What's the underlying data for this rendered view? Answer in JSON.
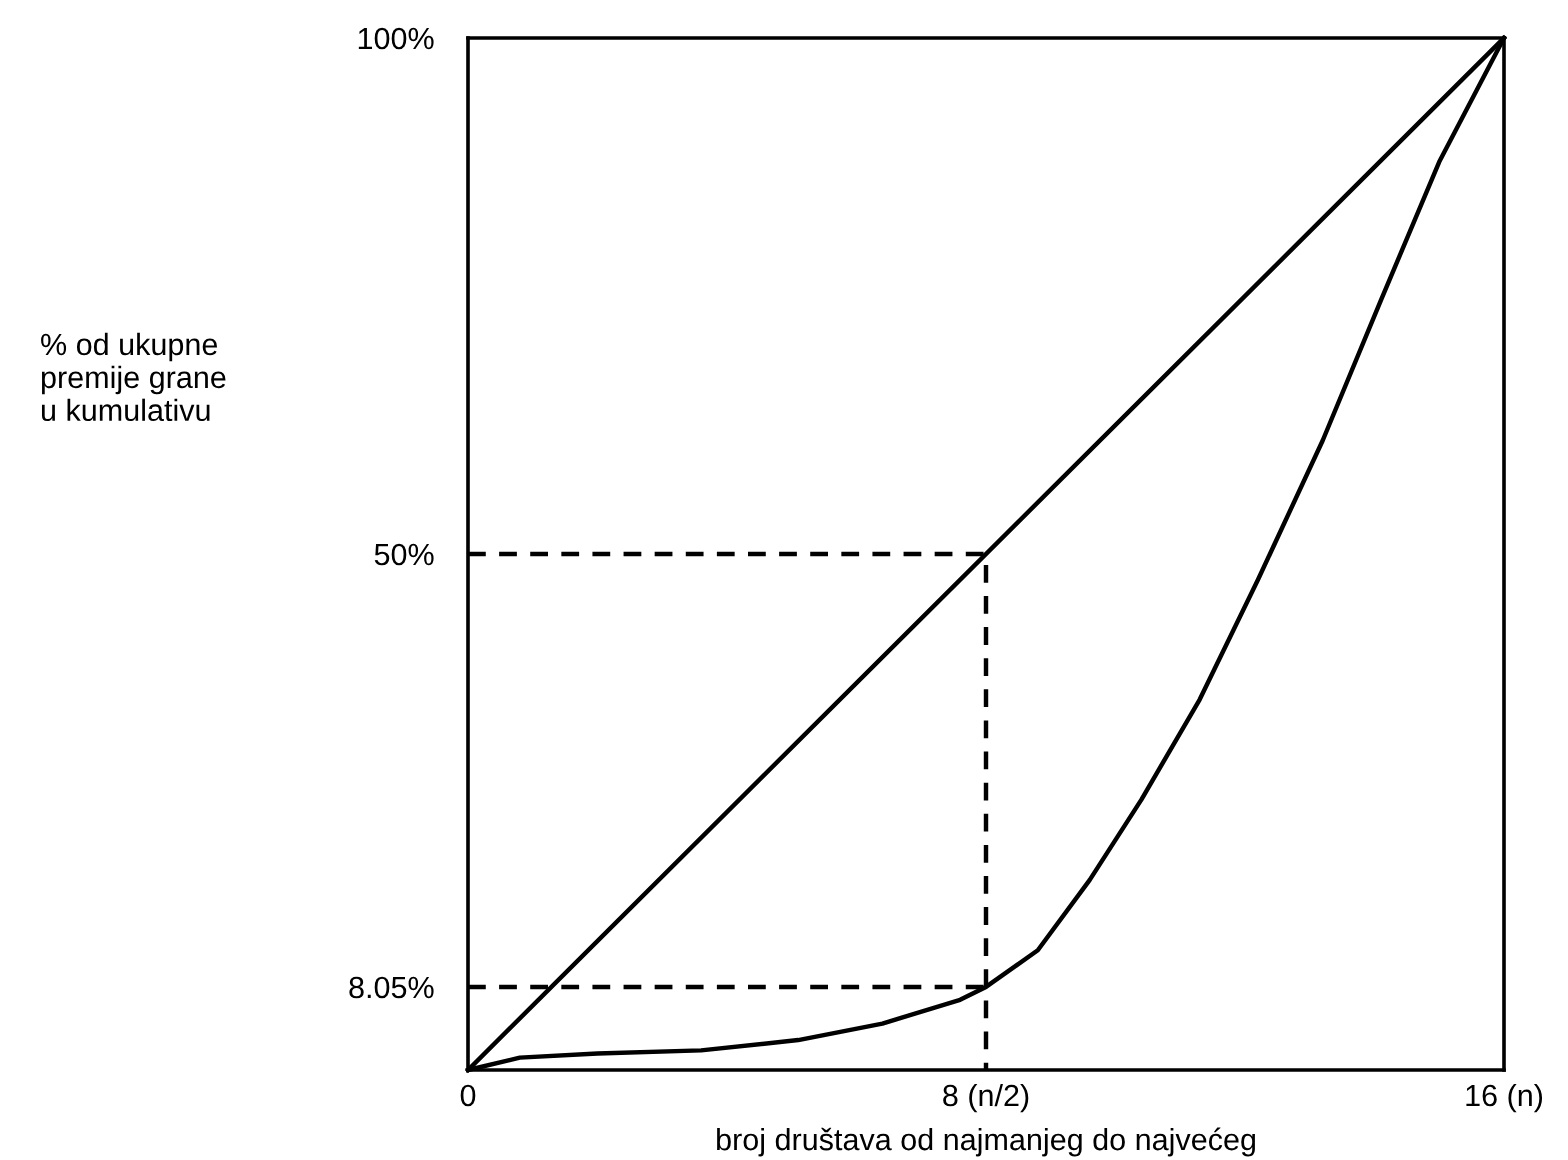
{
  "chart_data": {
    "type": "line",
    "xlabel": "broj društava od najmanjeg do najvećeg",
    "ylabel": "% od ukupne\npremije grane\nu kumulativu",
    "xlim": [
      0,
      16
    ],
    "ylim": [
      0,
      100
    ],
    "xticks": [
      0,
      {
        "value": 8,
        "label": "8 (n/2)"
      },
      {
        "value": 16,
        "label": "16 (n)"
      }
    ],
    "yticks": [
      {
        "value": 8.05,
        "label": "8.05%"
      },
      {
        "value": 50,
        "label": "50%"
      },
      {
        "value": 100,
        "label": "100%"
      }
    ],
    "grid": false,
    "legend": false,
    "series": [
      {
        "color": "#000000",
        "x": [
          0,
          16
        ],
        "values": [
          0,
          100
        ],
        "line_style": "solid"
      },
      {
        "color": "#000000",
        "x": [
          0,
          0.8,
          2,
          3.6,
          5.1,
          6.4,
          7.6,
          8,
          8.8,
          9.6,
          10.4,
          11.3,
          12.2,
          13.2,
          14.1,
          15,
          16
        ],
        "values": [
          0,
          1.2,
          1.6,
          1.9,
          2.9,
          4.5,
          6.8,
          8.05,
          11.6,
          18.4,
          26.2,
          35.9,
          47.5,
          61,
          74.6,
          88,
          100
        ],
        "line_style": "solid"
      },
      {
        "color": "#000000",
        "x": [
          0,
          8,
          8
        ],
        "values": [
          50,
          50,
          0
        ],
        "line_style": "dashed"
      },
      {
        "color": "#000000",
        "x": [
          0,
          8
        ],
        "values": [
          8.05,
          8.05
        ],
        "line_style": "dashed"
      }
    ]
  }
}
